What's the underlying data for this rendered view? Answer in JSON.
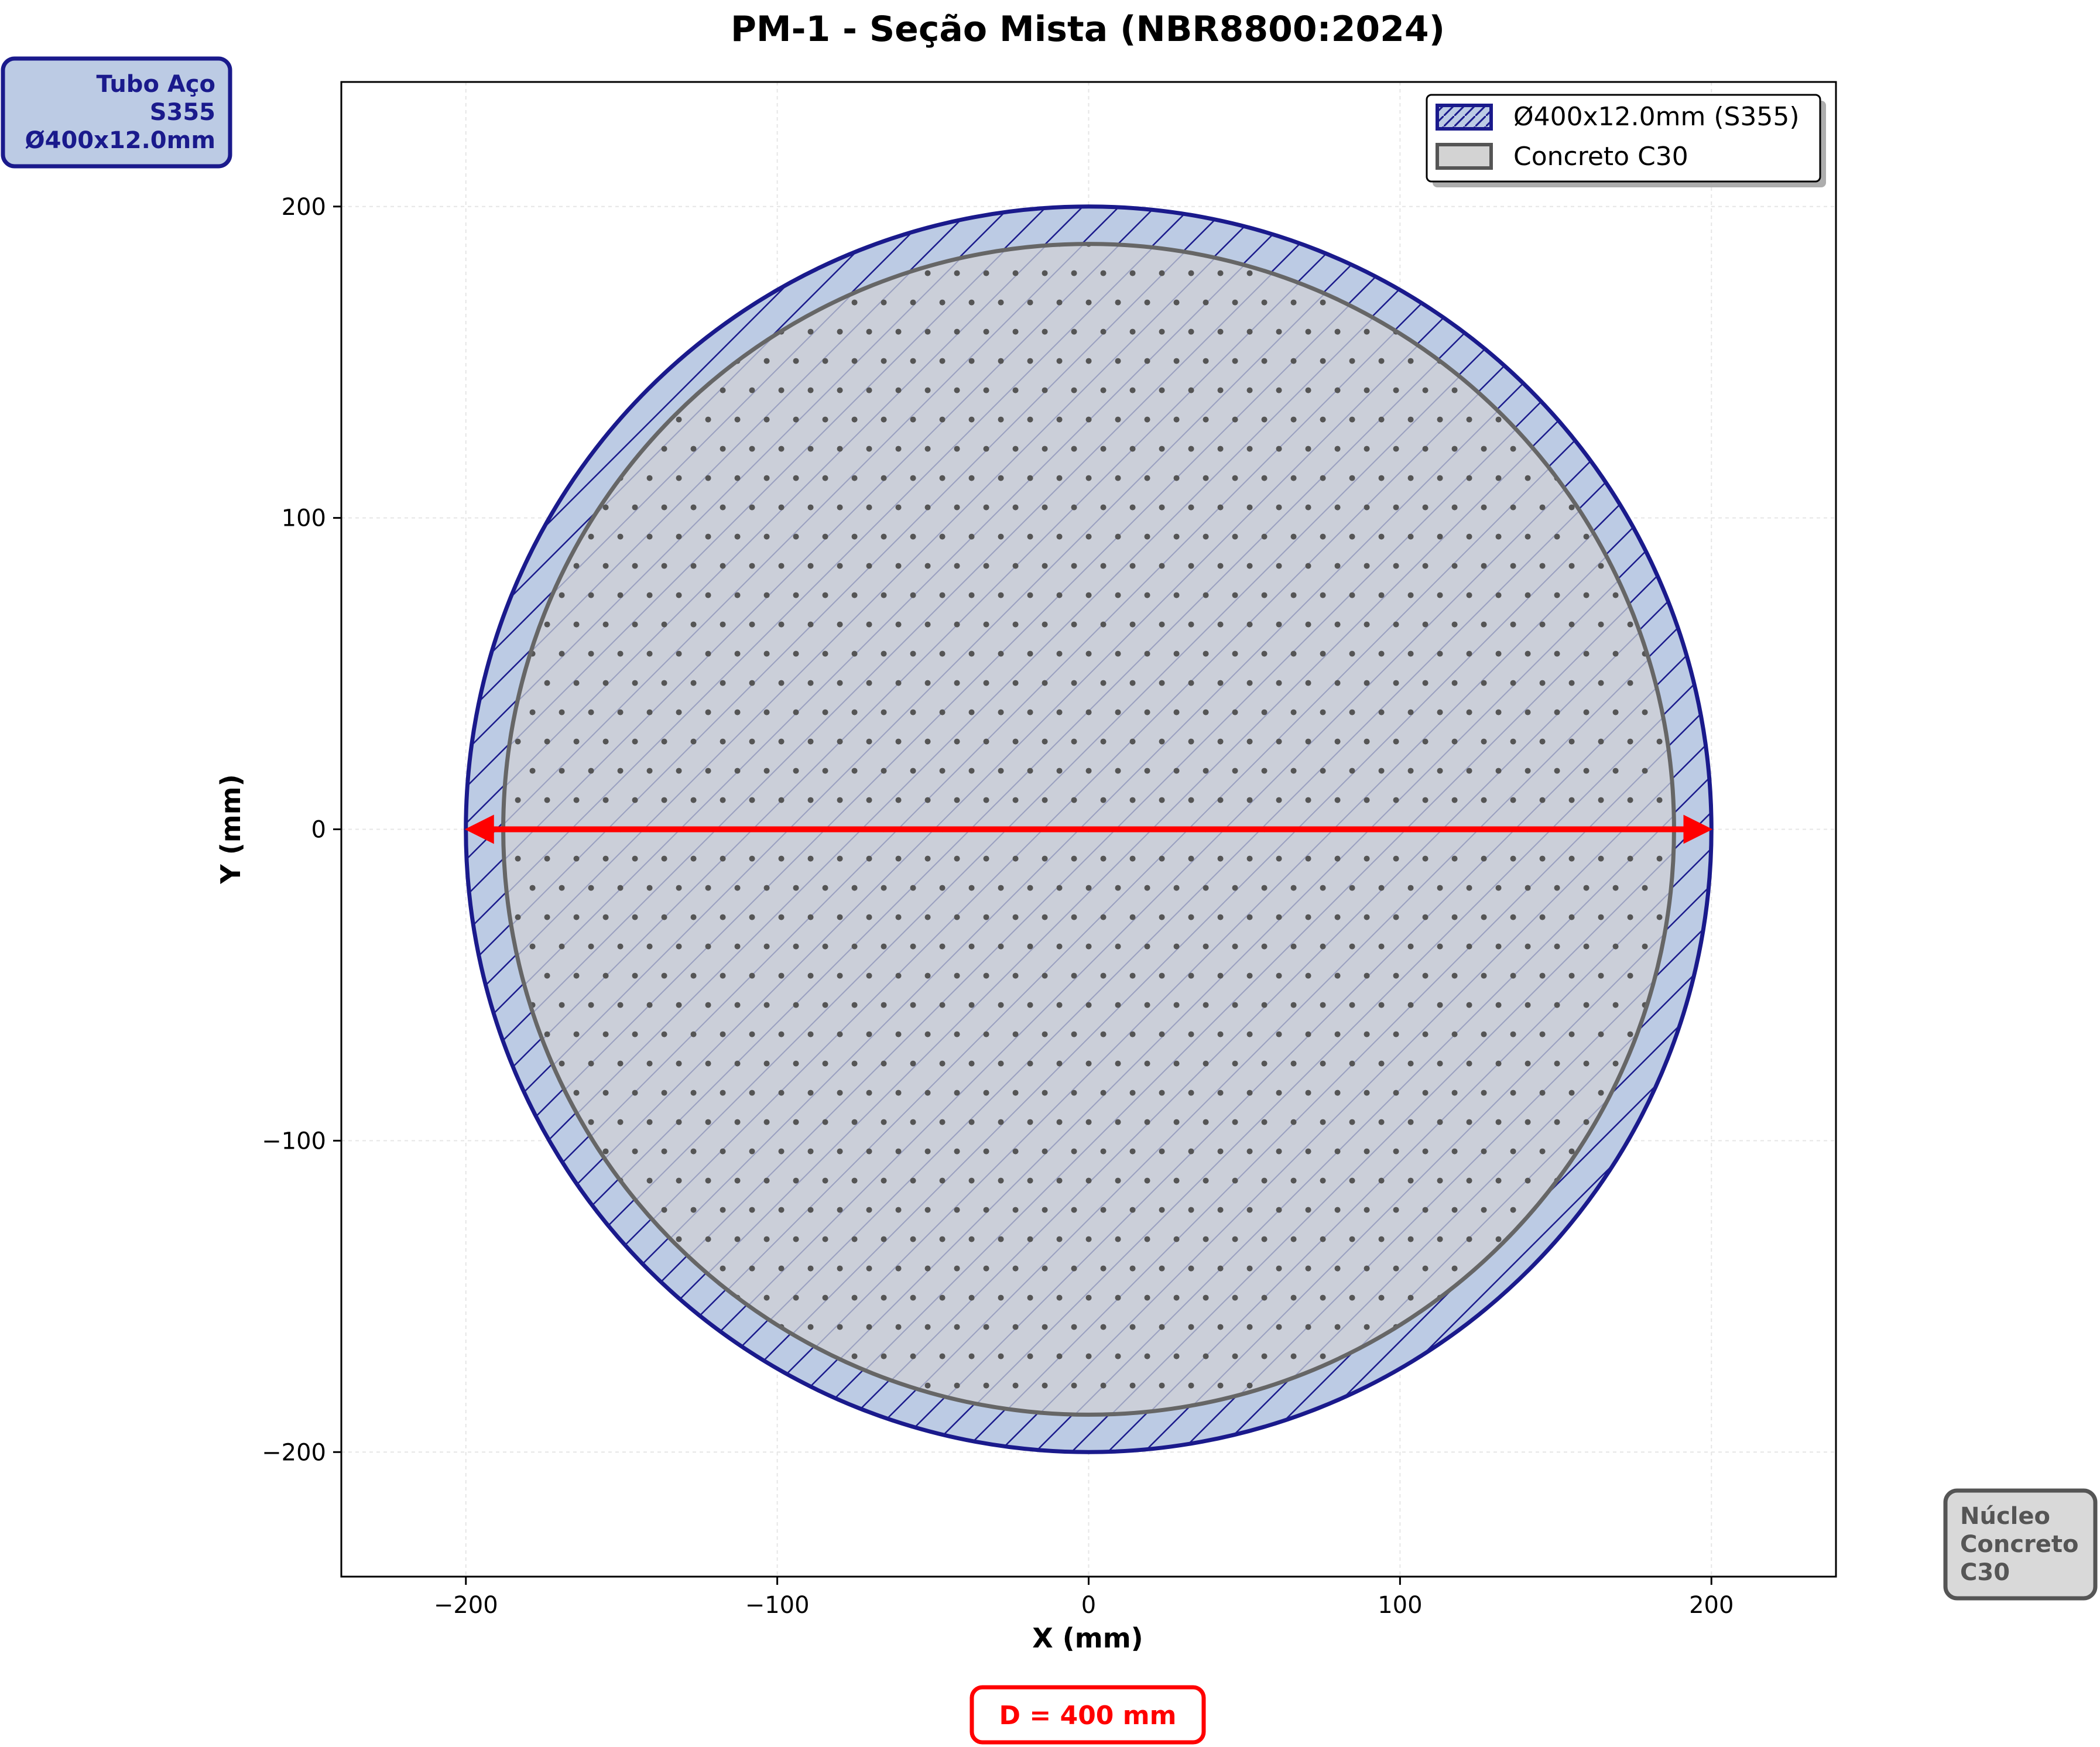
{
  "title": "PM-1 - Seção Mista (NBR8800:2024)",
  "axes": {
    "xlabel": "X (mm)",
    "ylabel": "Y (mm)",
    "xlim": [
      -240,
      240
    ],
    "ylim": [
      -240,
      240
    ],
    "xticks": [
      -200,
      -100,
      0,
      100,
      200
    ],
    "yticks": [
      -200,
      -100,
      0,
      100,
      200
    ],
    "xtick_labels": [
      "−200",
      "−100",
      "0",
      "100",
      "200"
    ],
    "ytick_labels": [
      "−200",
      "−100",
      "0",
      "100",
      "200"
    ],
    "grid": true
  },
  "section": {
    "outer_diameter_mm": 400,
    "wall_thickness_mm": 12,
    "steel_color": "#1a1a8c",
    "steel_fill": "#bccbe4",
    "concrete_color": "#666666",
    "concrete_fill": "#cbcfd9"
  },
  "dimension": {
    "arrow_color": "#ff0000",
    "label": "D = 400 mm"
  },
  "legend": {
    "placement": "top-right",
    "entries": [
      {
        "label": "Ø400x12.0mm (S355)",
        "color": "#1a1a8c",
        "fill": "#bccbe4",
        "hatch": true
      },
      {
        "label": "Concreto C30",
        "color": "#666666",
        "fill": "#d3d3d3",
        "hatch": false
      }
    ]
  },
  "annotations": {
    "steel_box": {
      "lines": [
        "Tubo Aço",
        "S355",
        "Ø400x12.0mm"
      ],
      "color": "#1a1a8c",
      "fill": "#bccbe4"
    },
    "concrete_box": {
      "lines": [
        "Núcleo",
        "Concreto",
        "C30"
      ],
      "color": "#555555",
      "fill": "#d9d9d9"
    }
  }
}
